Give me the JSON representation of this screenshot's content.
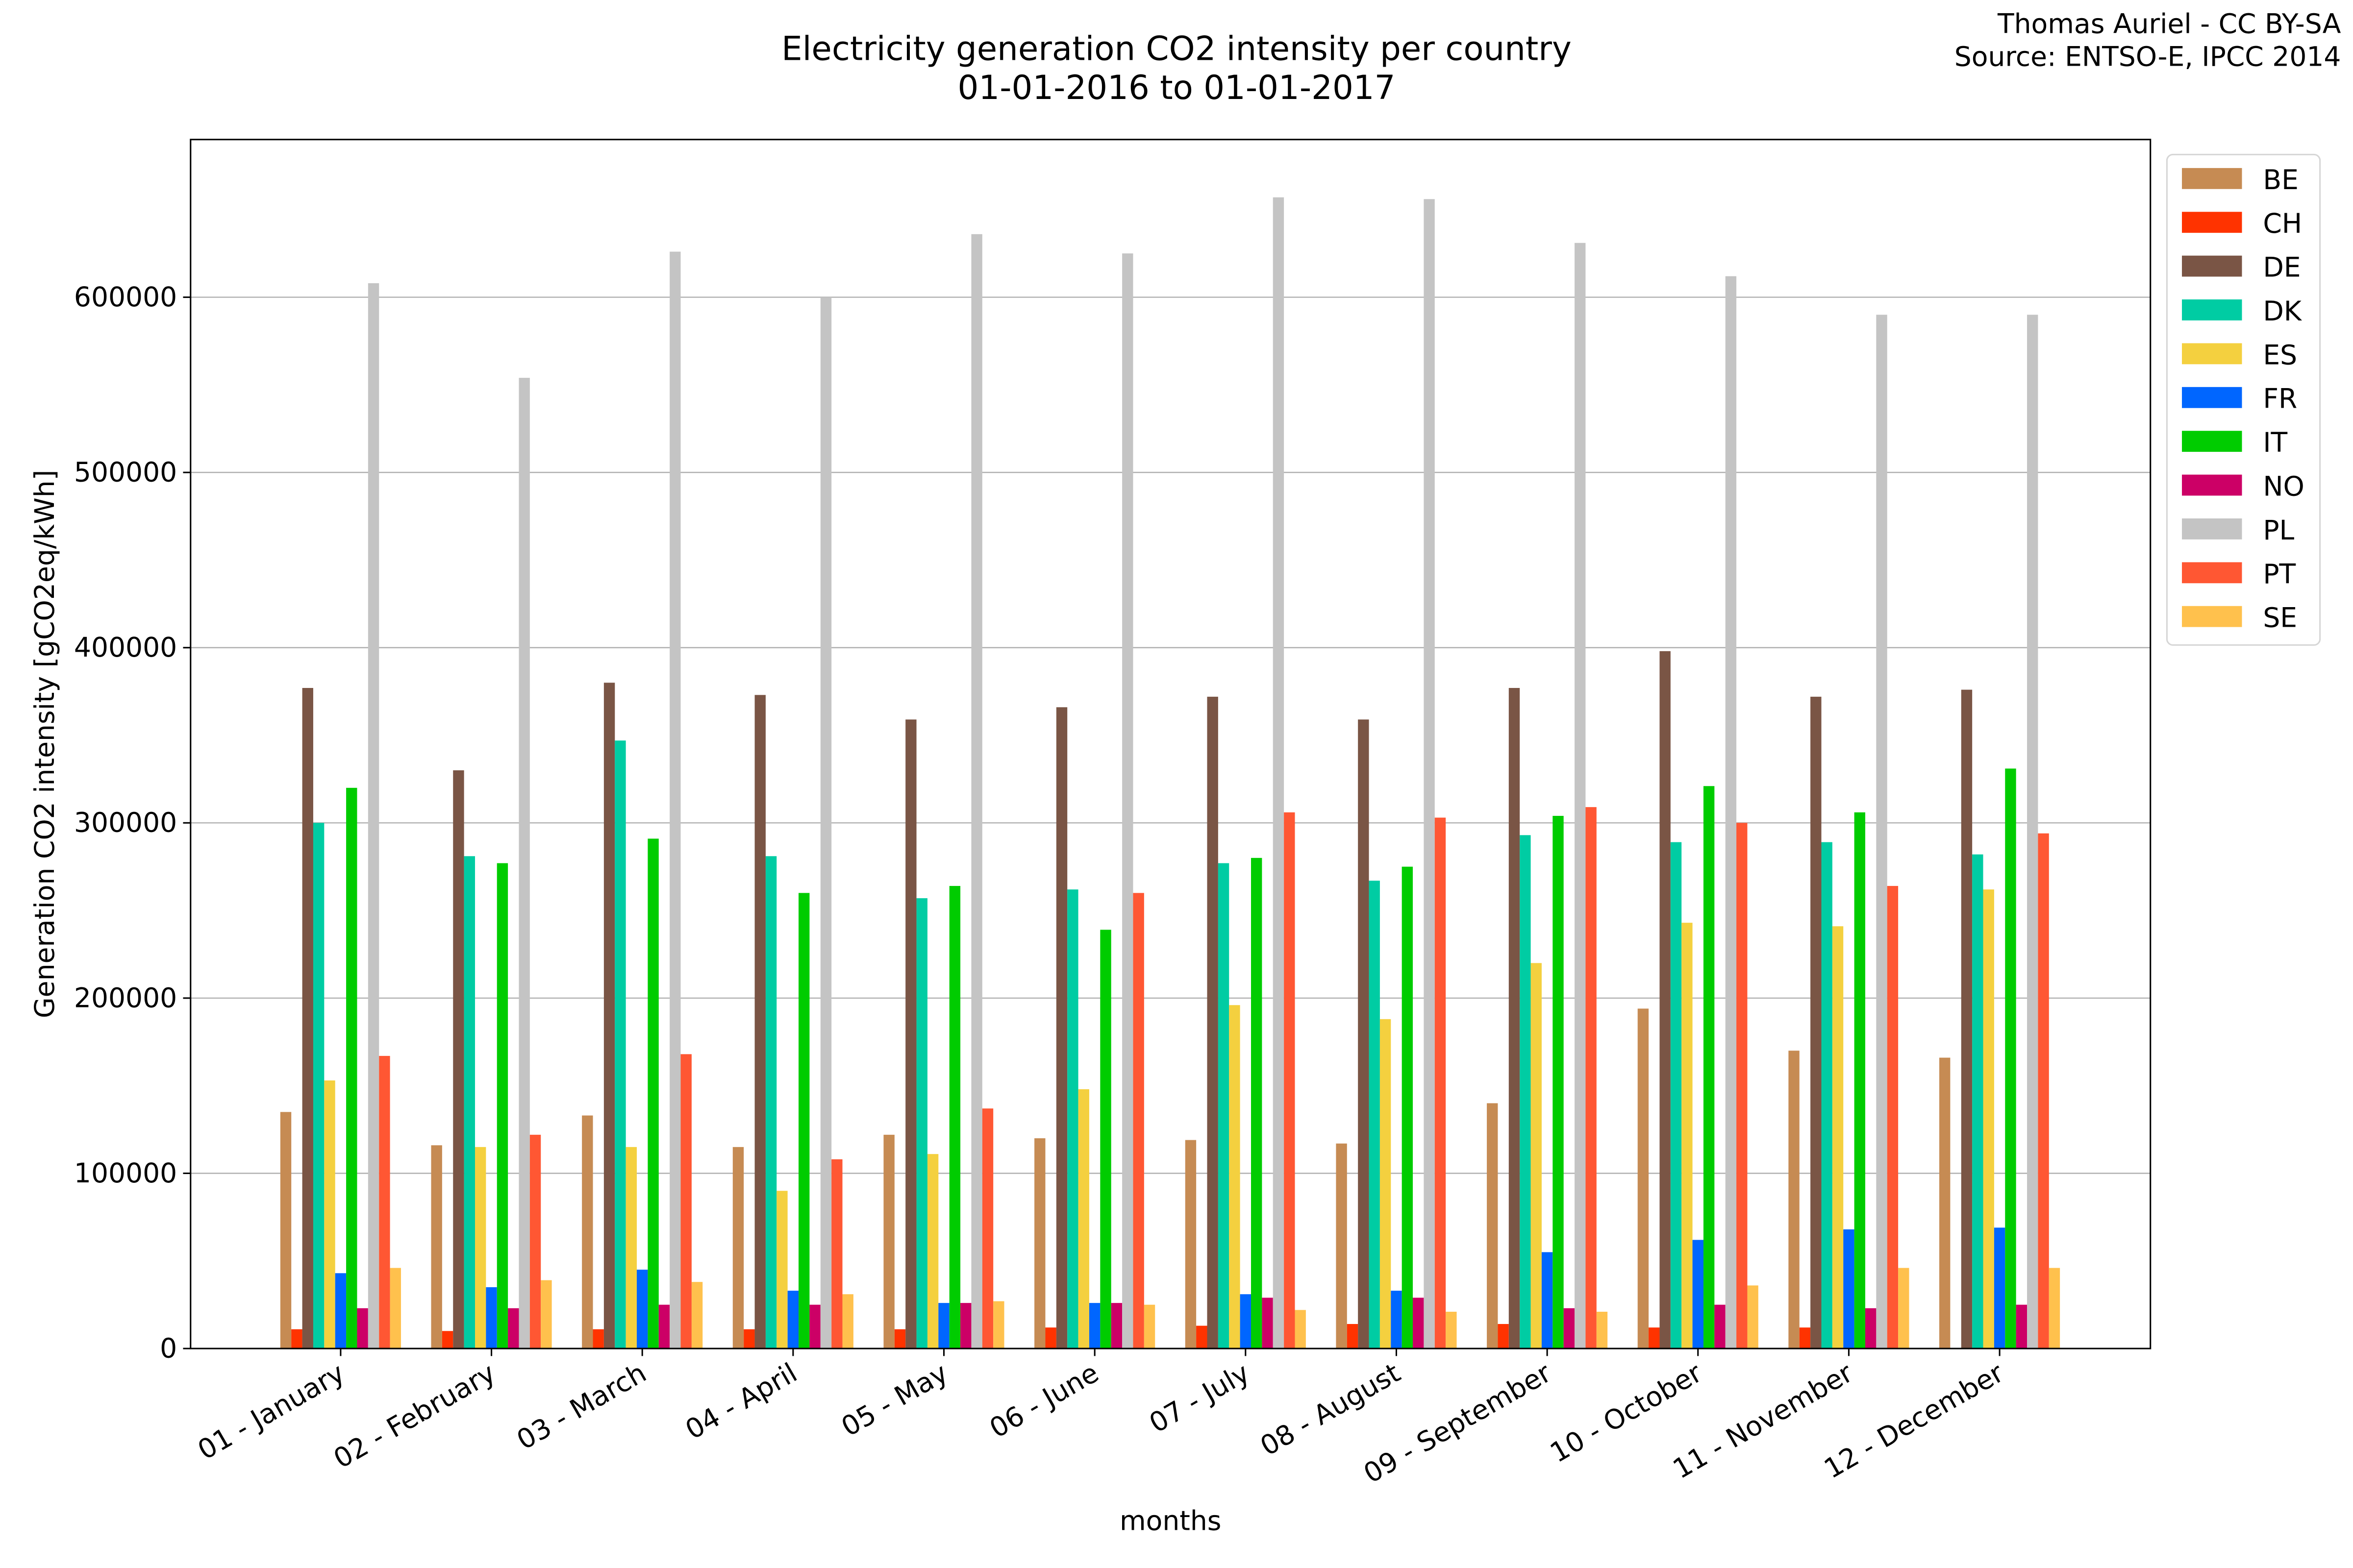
{
  "credits": [
    "Thomas Auriel - CC BY-SA",
    "Source: ENTSO-E, IPCC 2014"
  ],
  "chart_data": {
    "type": "bar",
    "title": [
      "Electricity generation CO2 intensity per country",
      "01-01-2016 to 01-01-2017"
    ],
    "xlabel": "months",
    "ylabel": "Generation CO2 intensity [gCO2eq/kWh]",
    "ylim": [
      0,
      690000
    ],
    "yticks": [
      0,
      100000,
      200000,
      300000,
      400000,
      500000,
      600000
    ],
    "grid": true,
    "legend_position": "top-right",
    "categories": [
      "01 - January",
      "02 - February",
      "03 - March",
      "04 - April",
      "05 - May",
      "06 - June",
      "07 - July",
      "08 - August",
      "09 - September",
      "10 - October",
      "11 - November",
      "12 - December"
    ],
    "series": [
      {
        "name": "BE",
        "color": "#c68b53",
        "values": [
          135000,
          116000,
          133000,
          115000,
          122000,
          120000,
          119000,
          117000,
          140000,
          194000,
          170000,
          166000
        ]
      },
      {
        "name": "CH",
        "color": "#ff3300",
        "values": [
          11000,
          10000,
          11000,
          11000,
          11000,
          12000,
          13000,
          14000,
          14000,
          12000,
          12000,
          0
        ]
      },
      {
        "name": "DE",
        "color": "#7a5545",
        "values": [
          377000,
          330000,
          380000,
          373000,
          359000,
          366000,
          372000,
          359000,
          377000,
          398000,
          372000,
          376000
        ]
      },
      {
        "name": "DK",
        "color": "#00cca3",
        "values": [
          300000,
          281000,
          347000,
          281000,
          257000,
          262000,
          277000,
          267000,
          293000,
          289000,
          289000,
          282000
        ]
      },
      {
        "name": "ES",
        "color": "#f4d03f",
        "values": [
          153000,
          115000,
          115000,
          90000,
          111000,
          148000,
          196000,
          188000,
          220000,
          243000,
          241000,
          262000
        ]
      },
      {
        "name": "FR",
        "color": "#0066ff",
        "values": [
          43000,
          35000,
          45000,
          33000,
          26000,
          26000,
          31000,
          33000,
          55000,
          62000,
          68000,
          69000
        ]
      },
      {
        "name": "IT",
        "color": "#00cc00",
        "values": [
          320000,
          277000,
          291000,
          260000,
          264000,
          239000,
          280000,
          275000,
          304000,
          321000,
          306000,
          331000
        ]
      },
      {
        "name": "NO",
        "color": "#cc0066",
        "values": [
          23000,
          23000,
          25000,
          25000,
          26000,
          26000,
          29000,
          29000,
          23000,
          25000,
          23000,
          25000
        ]
      },
      {
        "name": "PL",
        "color": "#c4c4c4",
        "values": [
          608000,
          554000,
          626000,
          600000,
          636000,
          625000,
          657000,
          656000,
          631000,
          612000,
          590000,
          590000
        ]
      },
      {
        "name": "PT",
        "color": "#ff5733",
        "values": [
          167000,
          122000,
          168000,
          108000,
          137000,
          260000,
          306000,
          303000,
          309000,
          300000,
          264000,
          294000
        ]
      },
      {
        "name": "SE",
        "color": "#ffc14d",
        "values": [
          46000,
          39000,
          38000,
          31000,
          27000,
          25000,
          22000,
          21000,
          21000,
          36000,
          46000,
          46000
        ]
      }
    ]
  }
}
